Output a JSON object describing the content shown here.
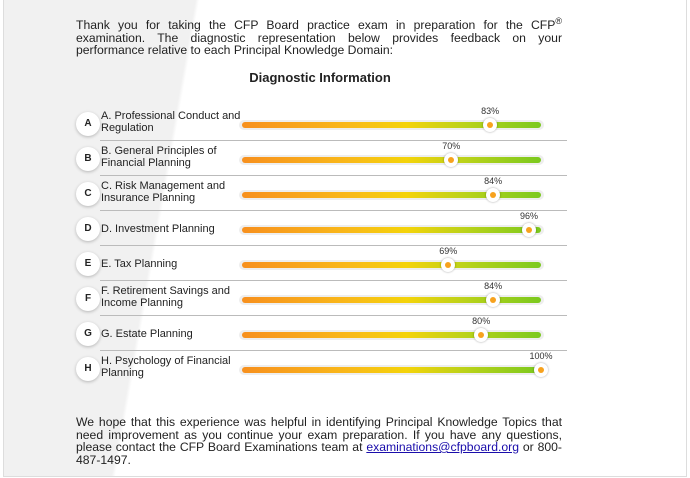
{
  "intro": {
    "before_sup": "Thank you for taking the CFP Board practice exam in preparation for the CFP",
    "sup": "®",
    "after_sup": " examination. The diagnostic representation below provides feedback on your performance relative to each Principal Knowledge Domain:"
  },
  "title": "Diagnostic Information",
  "domains": [
    {
      "letter": "A",
      "label": "A. Professional Conduct and Regulation",
      "value": 83,
      "value_label": "83%"
    },
    {
      "letter": "B",
      "label": "B. General Principles of Financial Planning",
      "value": 70,
      "value_label": "70%"
    },
    {
      "letter": "C",
      "label": "C. Risk Management and Insurance Planning",
      "value": 84,
      "value_label": "84%"
    },
    {
      "letter": "D",
      "label": "D. Investment Planning",
      "value": 96,
      "value_label": "96%"
    },
    {
      "letter": "E",
      "label": "E. Tax Planning",
      "value": 69,
      "value_label": "69%"
    },
    {
      "letter": "F",
      "label": "F. Retirement Savings and Income Planning",
      "value": 84,
      "value_label": "84%"
    },
    {
      "letter": "G",
      "label": "G. Estate Planning",
      "value": 80,
      "value_label": "80%"
    },
    {
      "letter": "H",
      "label": "H. Psychology of Financial Planning",
      "value": 100,
      "value_label": "100%"
    }
  ],
  "outro": {
    "before_link": "We hope that this experience was helpful in identifying Principal Knowledge Topics that need improvement as you continue your exam preparation. If you have any questions, please contact the CFP Board Examinations team at ",
    "link": "examinations@cfpboard.org",
    "after_link": " or 800-487-1497."
  },
  "colors": {
    "bar_start": "#f7901e",
    "bar_mid": "#f4d30a",
    "bar_end": "#7bc91e",
    "knob_dot": "#f7a21e",
    "link": "#1a0dab"
  }
}
